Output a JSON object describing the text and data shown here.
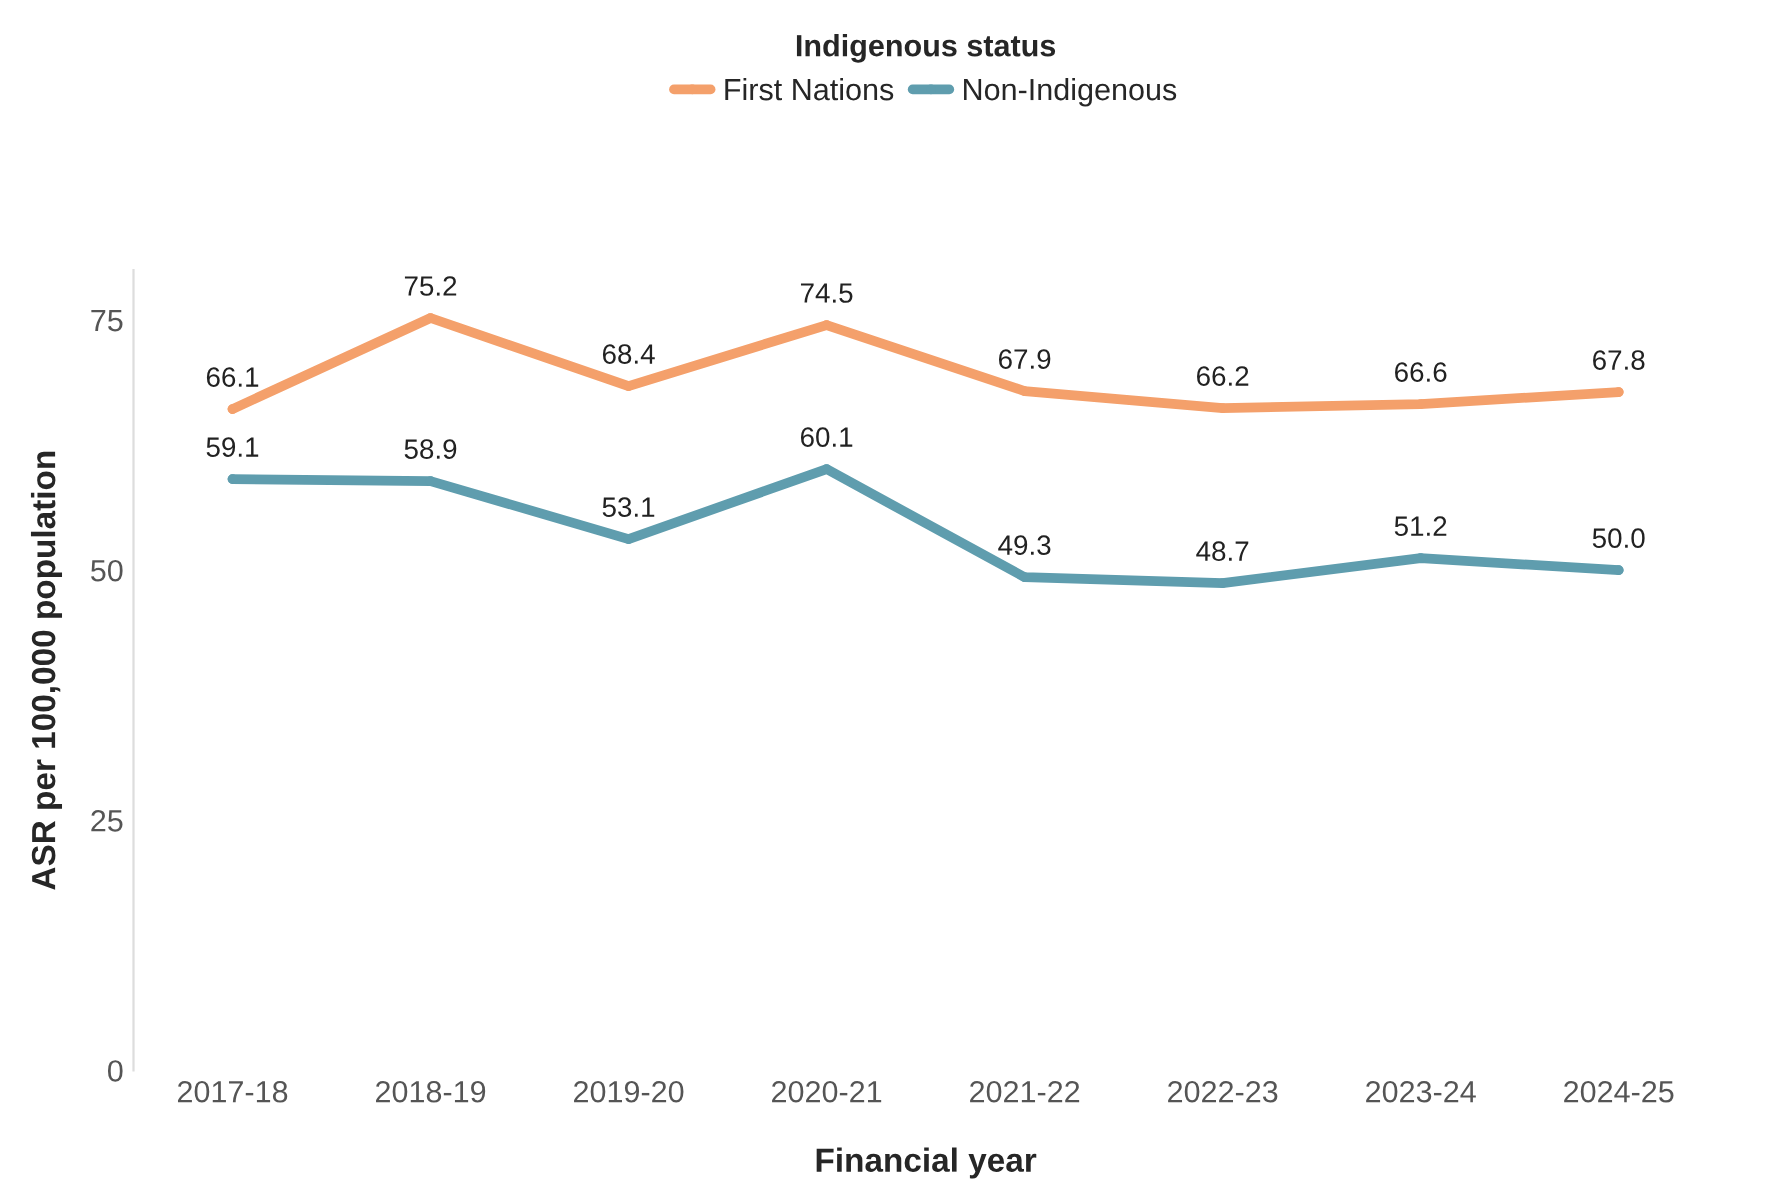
{
  "chart_data": {
    "type": "line",
    "xlabel": "Financial year",
    "ylabel": "ASR per 100,000 population",
    "legend_title": "Indigenous status",
    "categories": [
      "2017-18",
      "2018-19",
      "2019-20",
      "2020-21",
      "2021-22",
      "2022-23",
      "2023-24",
      "2024-25"
    ],
    "series": [
      {
        "name": "First Nations",
        "color": "#f4a06b",
        "values": [
          66.1,
          75.2,
          68.4,
          74.5,
          67.9,
          66.2,
          66.6,
          67.8
        ],
        "value_labels": [
          "66.1",
          "75.2",
          "68.4",
          "74.5",
          "67.9",
          "66.2",
          "66.6",
          "67.8"
        ]
      },
      {
        "name": "Non-Indigenous",
        "color": "#5f9dae",
        "values": [
          59.1,
          58.9,
          53.1,
          60.1,
          49.3,
          48.7,
          51.2,
          50.0
        ],
        "value_labels": [
          "59.1",
          "58.9",
          "53.1",
          "60.1",
          "49.3",
          "48.7",
          "51.2",
          "50.0"
        ]
      }
    ],
    "ylim": [
      0,
      80
    ],
    "yticks": [
      0,
      25,
      50,
      75
    ],
    "grid": false,
    "legend": "top",
    "marker": "circle",
    "line_style": "solid"
  }
}
